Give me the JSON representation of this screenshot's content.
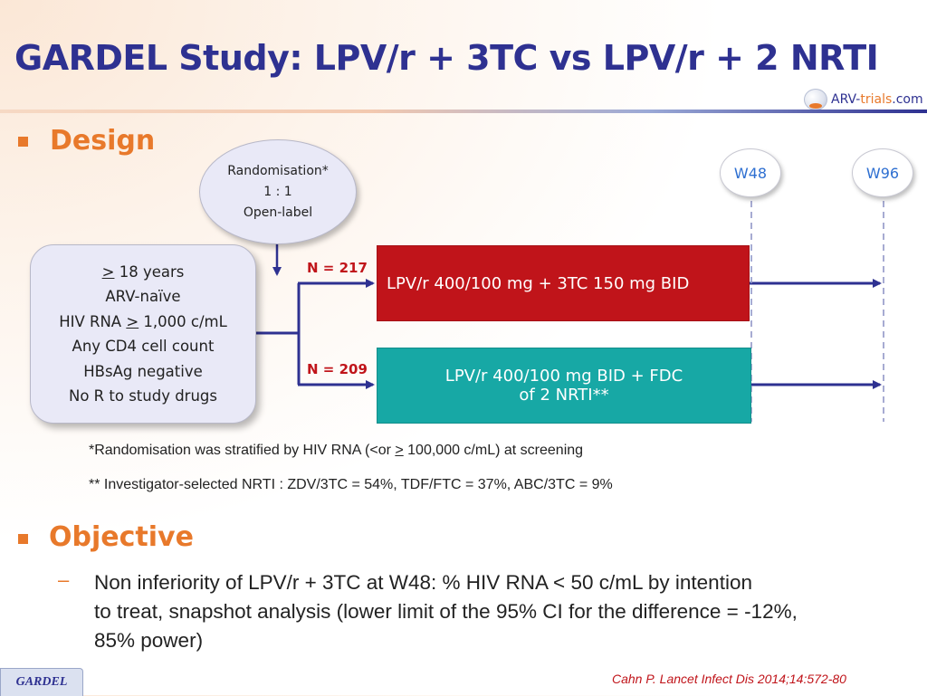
{
  "header": {
    "title": "GARDEL Study: LPV/r + 3TC vs LPV/r + 2 NRTI",
    "logo": {
      "main": "ARV-",
      "accent": "trials",
      "suffix": ".com"
    }
  },
  "design": {
    "heading": "Design",
    "randomisation": [
      "Randomisation*",
      "1 : 1",
      "Open-label"
    ],
    "criteria": {
      "line1_symbol": ">",
      "line1_rest": " 18 years",
      "line2": "ARV-naïve",
      "line3_pre": "HIV RNA ",
      "line3_symbol": ">",
      "line3_post": " 1,000 c/mL",
      "line4": "Any CD4 cell count",
      "line5": "HBsAg negative",
      "line6": "No R to study drugs"
    },
    "arms": [
      {
        "n": "N = 217",
        "label": "LPV/r 400/100 mg + 3TC 150 mg BID",
        "color": "#c0141a"
      },
      {
        "n": "N = 209",
        "label_line1": "LPV/r 400/100 mg BID + FDC",
        "label_line2": "of 2 NRTI**",
        "color": "#17a8a5"
      }
    ],
    "timepoints": [
      "W48",
      "W96"
    ],
    "note1_pre": "*Randomisation was stratified by HIV RNA (<or ",
    "note1_symbol": ">",
    "note1_post": " 100,000 c/mL) at screening",
    "note2": "** Investigator-selected NRTI : ZDV/3TC = 54%, TDF/FTC = 37%, ABC/3TC = 9%"
  },
  "objective": {
    "heading": "Objective",
    "dash": "–",
    "lines": [
      "Non inferiority of LPV/r + 3TC at W48: % HIV RNA < 50 c/mL by intention",
      "to treat, snapshot analysis (lower limit of the 95% CI for the difference = -12%,",
      "85% power)"
    ]
  },
  "footer": {
    "tag": "GARDEL",
    "citation": "Cahn P. Lancet Infect Dis 2014;14:572-80"
  },
  "colors": {
    "title": "#2e3191",
    "accent": "#e8792b",
    "arm1": "#c0141a",
    "arm2": "#17a8a5",
    "week": "#2e6fd1"
  }
}
